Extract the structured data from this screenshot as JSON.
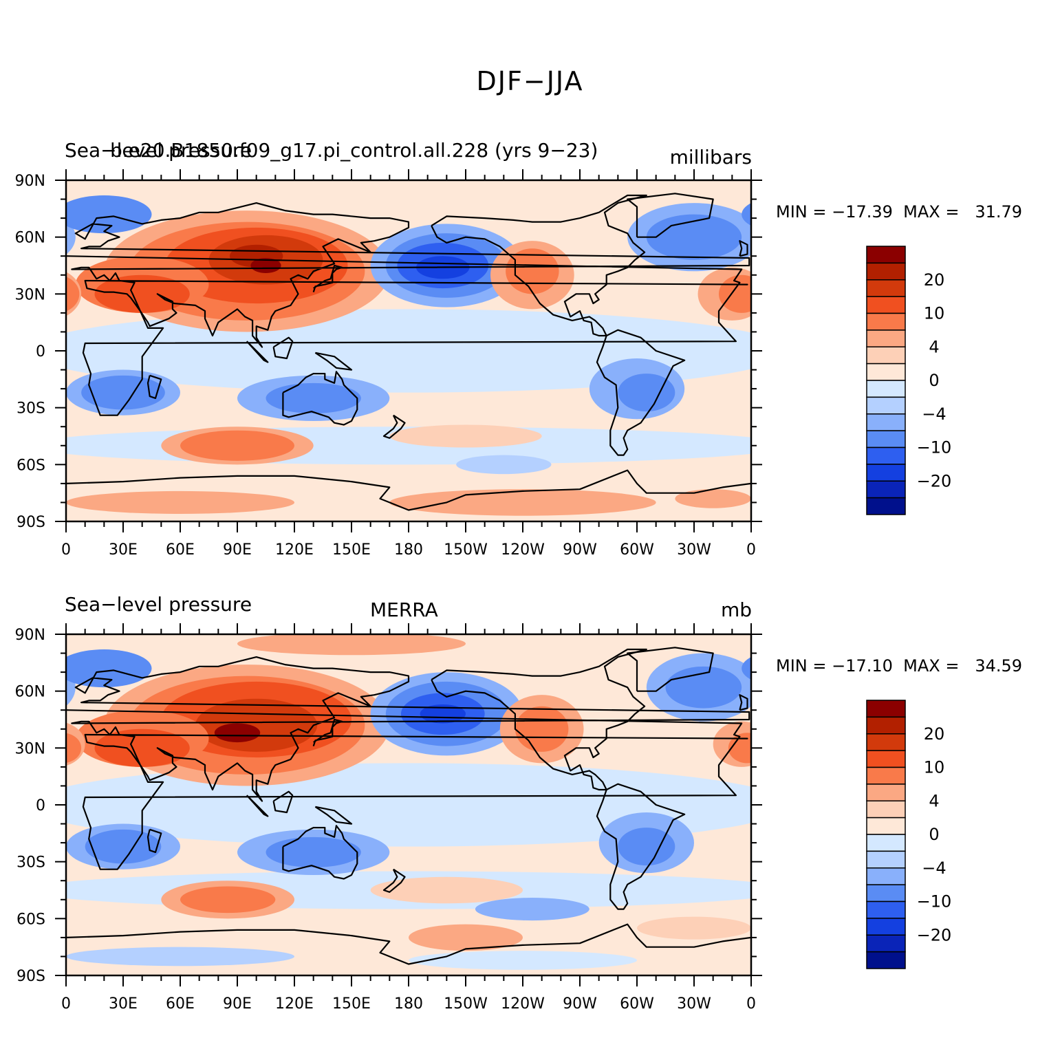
{
  "figure_title": "DJF−JJA",
  "colorbar": {
    "colors": [
      "#8b0000",
      "#b22000",
      "#d23a0c",
      "#f05020",
      "#f97a4a",
      "#fba883",
      "#fdd0b7",
      "#fee8d8",
      "#d4e8ff",
      "#b4d0ff",
      "#89b0fb",
      "#5a8cf4",
      "#2e5ff0",
      "#1440e0",
      "#0a24b8",
      "#00108c"
    ],
    "labels": [
      "20",
      "10",
      "4",
      "0",
      "−4",
      "−10",
      "−20"
    ]
  },
  "axes": {
    "lat_ticks": [
      "90N",
      "60N",
      "30N",
      "0",
      "30S",
      "60S",
      "90S"
    ],
    "lon_ticks": [
      "0",
      "30E",
      "60E",
      "90E",
      "120E",
      "150E",
      "180",
      "150W",
      "120W",
      "90W",
      "60W",
      "30W",
      "0"
    ]
  },
  "panels": [
    {
      "left_title": "Sea−level pressure",
      "center_title": "b.e20.B1850.f09_g17.pi_control.all.228 (yrs 9−23)",
      "units": "millibars",
      "min_max": "MIN = −17.39  MAX =   31.79",
      "min": -17.39,
      "max": 31.79
    },
    {
      "left_title": "Sea−level pressure",
      "center_title": "MERRA",
      "units": "mb",
      "min_max": "MIN = −17.10  MAX =   34.59",
      "min": -17.1,
      "max": 34.59
    }
  ]
}
